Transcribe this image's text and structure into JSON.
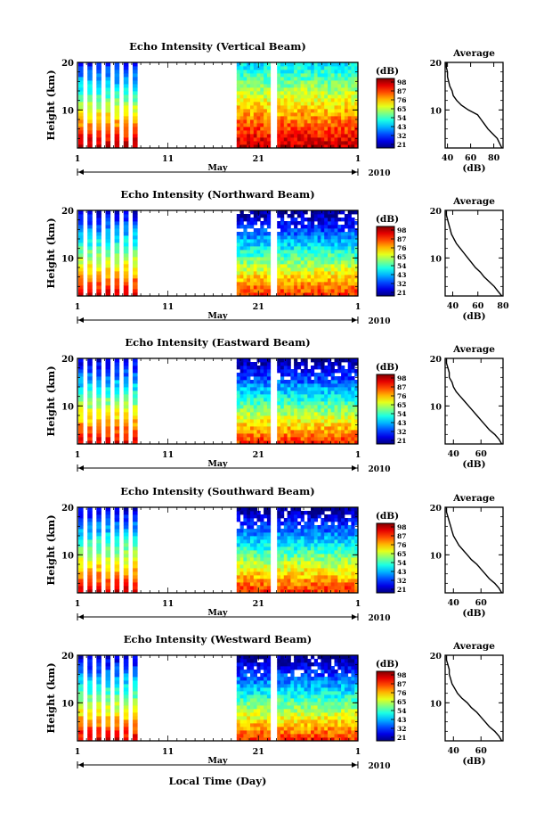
{
  "figure": {
    "xlabel_bottom": "Local Time (Day)",
    "month_label": "May",
    "year_label": "2010",
    "x_tick_labels": [
      "1",
      "11",
      "21",
      "1"
    ],
    "colorbar_unit": "(dB)",
    "colorbar_ticks": [
      "98",
      "87",
      "76",
      "65",
      "54",
      "43",
      "32",
      "21"
    ],
    "avg_title": "Average",
    "avg_xlabel": "(dB)"
  },
  "chart_data": [
    {
      "type": "heatmap",
      "title": "Echo Intensity (Vertical Beam)",
      "ylabel": "Height (km)",
      "xlim": [
        "2010-05-01",
        "2010-06-01"
      ],
      "ylim": [
        2,
        20
      ],
      "y_ticks": [
        "20",
        "10"
      ],
      "colorbar_range": [
        21,
        98
      ],
      "data_gaps": [
        [
          "2010-05-08",
          "2010-05-18"
        ],
        [
          "2010-05-22",
          "2010-05-22"
        ]
      ],
      "average_profile": {
        "type": "line",
        "title": "Average",
        "xlabel": "(dB)",
        "x_ticks": [
          "40",
          "60",
          "80"
        ],
        "xlim": [
          38,
          88
        ],
        "ylim": [
          2,
          20
        ],
        "y_ticks": [
          "20",
          "10"
        ],
        "points": [
          [
            87,
            2
          ],
          [
            85,
            3
          ],
          [
            83,
            4
          ],
          [
            79,
            5
          ],
          [
            75,
            6
          ],
          [
            72,
            7
          ],
          [
            69,
            8
          ],
          [
            66,
            9
          ],
          [
            58,
            10
          ],
          [
            52,
            11
          ],
          [
            48,
            12
          ],
          [
            45,
            13
          ],
          [
            44,
            14
          ],
          [
            42,
            15
          ],
          [
            41,
            16
          ],
          [
            40,
            17
          ],
          [
            40,
            18
          ],
          [
            39,
            19
          ],
          [
            39,
            20
          ]
        ]
      }
    },
    {
      "type": "heatmap",
      "title": "Echo Intensity (Northward Beam)",
      "ylabel": "Height (km)",
      "xlim": [
        "2010-05-01",
        "2010-06-01"
      ],
      "ylim": [
        2,
        20
      ],
      "y_ticks": [
        "20",
        "10"
      ],
      "colorbar_range": [
        21,
        98
      ],
      "data_gaps": [
        [
          "2010-05-08",
          "2010-05-18"
        ],
        [
          "2010-05-22",
          "2010-05-22"
        ]
      ],
      "average_profile": {
        "type": "line",
        "title": "Average",
        "xlabel": "(dB)",
        "x_ticks": [
          "40",
          "60",
          "80"
        ],
        "xlim": [
          34,
          80
        ],
        "ylim": [
          2,
          20
        ],
        "y_ticks": [
          "20",
          "10"
        ],
        "points": [
          [
            79,
            2
          ],
          [
            76,
            3
          ],
          [
            73,
            4
          ],
          [
            69,
            5
          ],
          [
            65,
            6
          ],
          [
            62,
            7
          ],
          [
            58,
            8
          ],
          [
            55,
            9
          ],
          [
            52,
            10
          ],
          [
            49,
            11
          ],
          [
            46,
            12
          ],
          [
            43,
            13
          ],
          [
            41,
            14
          ],
          [
            39,
            15
          ],
          [
            38,
            16
          ],
          [
            37,
            17
          ],
          [
            36,
            18
          ],
          [
            35,
            19
          ],
          [
            35,
            20
          ]
        ]
      }
    },
    {
      "type": "heatmap",
      "title": "Echo Intensity (Eastward Beam)",
      "ylabel": "Height (km)",
      "xlim": [
        "2010-05-01",
        "2010-06-01"
      ],
      "ylim": [
        2,
        20
      ],
      "y_ticks": [
        "20",
        "10"
      ],
      "colorbar_range": [
        21,
        98
      ],
      "data_gaps": [
        [
          "2010-05-08",
          "2010-05-18"
        ],
        [
          "2010-05-22",
          "2010-05-22"
        ]
      ],
      "average_profile": {
        "type": "line",
        "title": "Average",
        "xlabel": "(dB)",
        "x_ticks": [
          "40",
          "60"
        ],
        "xlim": [
          34,
          76
        ],
        "ylim": [
          2,
          20
        ],
        "y_ticks": [
          "20",
          "10"
        ],
        "points": [
          [
            75,
            2
          ],
          [
            73,
            3
          ],
          [
            70,
            4
          ],
          [
            66,
            5
          ],
          [
            63,
            6
          ],
          [
            60,
            7
          ],
          [
            57,
            8
          ],
          [
            54,
            9
          ],
          [
            51,
            10
          ],
          [
            48,
            11
          ],
          [
            45,
            12
          ],
          [
            42,
            13
          ],
          [
            40,
            14
          ],
          [
            39,
            15
          ],
          [
            37,
            16
          ],
          [
            37,
            17
          ],
          [
            36,
            18
          ],
          [
            35,
            19
          ],
          [
            35,
            20
          ]
        ]
      }
    },
    {
      "type": "heatmap",
      "title": "Echo Intensity (Southward Beam)",
      "ylabel": "Height (km)",
      "xlim": [
        "2010-05-01",
        "2010-06-01"
      ],
      "ylim": [
        2,
        20
      ],
      "y_ticks": [
        "20",
        "10"
      ],
      "colorbar_range": [
        21,
        98
      ],
      "data_gaps": [
        [
          "2010-05-08",
          "2010-05-18"
        ],
        [
          "2010-05-22",
          "2010-05-22"
        ]
      ],
      "average_profile": {
        "type": "line",
        "title": "Average",
        "xlabel": "(dB)",
        "x_ticks": [
          "40",
          "60"
        ],
        "xlim": [
          34,
          76
        ],
        "ylim": [
          2,
          20
        ],
        "y_ticks": [
          "20",
          "10"
        ],
        "points": [
          [
            75,
            2
          ],
          [
            73,
            3
          ],
          [
            70,
            4
          ],
          [
            66,
            5
          ],
          [
            63,
            6
          ],
          [
            60,
            7
          ],
          [
            57,
            8
          ],
          [
            53,
            9
          ],
          [
            50,
            10
          ],
          [
            47,
            11
          ],
          [
            44,
            12
          ],
          [
            42,
            13
          ],
          [
            40,
            14
          ],
          [
            39,
            15
          ],
          [
            38,
            16
          ],
          [
            37,
            17
          ],
          [
            36,
            18
          ],
          [
            35,
            19
          ],
          [
            35,
            20
          ]
        ]
      }
    },
    {
      "type": "heatmap",
      "title": "Echo Intensity (Westward Beam)",
      "ylabel": "Height (km)",
      "xlim": [
        "2010-05-01",
        "2010-06-01"
      ],
      "ylim": [
        2,
        20
      ],
      "y_ticks": [
        "20",
        "10"
      ],
      "colorbar_range": [
        21,
        98
      ],
      "data_gaps": [
        [
          "2010-05-08",
          "2010-05-18"
        ],
        [
          "2010-05-22",
          "2010-05-22"
        ]
      ],
      "average_profile": {
        "type": "line",
        "title": "Average",
        "xlabel": "(dB)",
        "x_ticks": [
          "40",
          "60"
        ],
        "xlim": [
          34,
          76
        ],
        "ylim": [
          2,
          20
        ],
        "y_ticks": [
          "20",
          "10"
        ],
        "points": [
          [
            75,
            2
          ],
          [
            73,
            3
          ],
          [
            70,
            4
          ],
          [
            66,
            5
          ],
          [
            63,
            6
          ],
          [
            60,
            7
          ],
          [
            57,
            8
          ],
          [
            53,
            9
          ],
          [
            50,
            10
          ],
          [
            46,
            11
          ],
          [
            43,
            12
          ],
          [
            41,
            13
          ],
          [
            39,
            14
          ],
          [
            38,
            15
          ],
          [
            37,
            16
          ],
          [
            37,
            17
          ],
          [
            36,
            18
          ],
          [
            35,
            19
          ],
          [
            35,
            20
          ]
        ]
      }
    }
  ]
}
